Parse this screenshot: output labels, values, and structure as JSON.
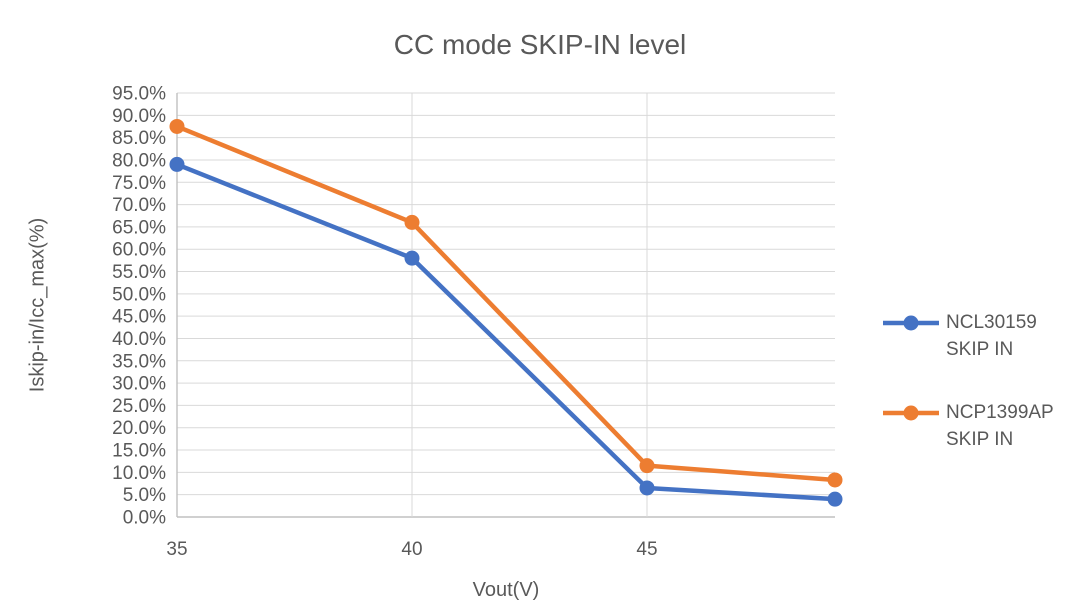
{
  "chart_data": {
    "type": "line",
    "title": "CC mode SKIP-IN level",
    "xlabel": "Vout(V)",
    "ylabel": "Iskip-in/Icc_max(%)",
    "x": [
      35,
      40,
      45,
      49
    ],
    "series": [
      {
        "name": "NCL30159 SKIP IN",
        "legend_lines": [
          "NCL30159",
          "SKIP IN"
        ],
        "color": "#4472C4",
        "values": [
          79.0,
          58.0,
          6.5,
          4.0
        ]
      },
      {
        "name": "NCP1399AP SKIP IN",
        "legend_lines": [
          "NCP1399AP",
          "SKIP IN"
        ],
        "color": "#ED7D31",
        "values": [
          87.5,
          66.0,
          11.5,
          8.3
        ]
      }
    ],
    "xlim": [
      35,
      49
    ],
    "ylim": [
      0,
      95
    ],
    "xticks": [
      35,
      40,
      45
    ],
    "ytick_step": 5,
    "ytick_suffix": "%",
    "grid": true,
    "legend_position": "right",
    "marker": "circle",
    "colors": {
      "text": "#595959",
      "gridline": "#D9D9D9",
      "axis_line": "#C0C0C0"
    }
  }
}
